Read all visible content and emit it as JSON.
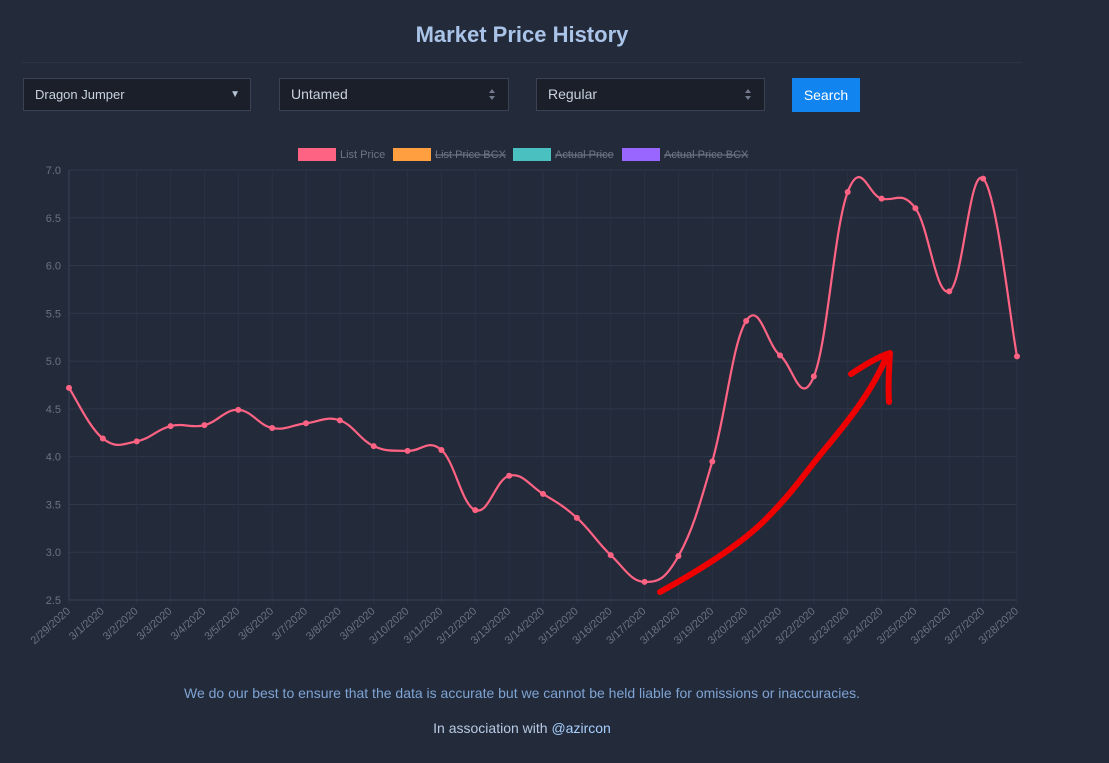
{
  "page": {
    "title": "Market Price History",
    "search_label": "Search"
  },
  "selects": {
    "card": "Dragon Jumper",
    "edition": "Untamed",
    "foil": "Regular"
  },
  "footer": {
    "disclaimer": "We do our best to ensure that the data is accurate but we cannot be held liable for omissions or inaccuracies.",
    "assoc_prefix": "In association with ",
    "assoc_handle": "@azircon"
  },
  "colors": {
    "list_price": "#ff6384",
    "list_price_bcx": "#ff9f40",
    "actual_price": "#4bc0c0",
    "actual_price_bcx": "#9966ff",
    "annotation_arrow": "#ee0000",
    "search_button": "#1184f0"
  },
  "chart_data": {
    "type": "line",
    "title": "",
    "xlabel": "",
    "ylabel": "",
    "ylim": [
      2.5,
      7.0
    ],
    "yticks": [
      "7.0",
      "6.5",
      "6.0",
      "5.5",
      "5.0",
      "4.5",
      "4.0",
      "3.5",
      "3.0",
      "2.5"
    ],
    "grid": true,
    "legend_position": "top",
    "categories": [
      "2/29/2020",
      "3/1/2020",
      "3/2/2020",
      "3/3/2020",
      "3/4/2020",
      "3/5/2020",
      "3/6/2020",
      "3/7/2020",
      "3/8/2020",
      "3/9/2020",
      "3/10/2020",
      "3/11/2020",
      "3/12/2020",
      "3/13/2020",
      "3/14/2020",
      "3/15/2020",
      "3/16/2020",
      "3/17/2020",
      "3/18/2020",
      "3/19/2020",
      "3/20/2020",
      "3/21/2020",
      "3/22/2020",
      "3/23/2020",
      "3/24/2020",
      "3/25/2020",
      "3/26/2020",
      "3/27/2020",
      "3/28/2020"
    ],
    "legend": [
      {
        "label": "List Price",
        "color": "#ff6384",
        "hidden": false
      },
      {
        "label": "List Price BCX",
        "color": "#ff9f40",
        "hidden": true
      },
      {
        "label": "Actual Price",
        "color": "#4bc0c0",
        "hidden": true
      },
      {
        "label": "Actual Price BCX",
        "color": "#9966ff",
        "hidden": true
      }
    ],
    "series": [
      {
        "name": "List Price",
        "color": "#ff6384",
        "values": [
          4.72,
          4.19,
          4.16,
          4.32,
          4.33,
          4.49,
          4.3,
          4.35,
          4.38,
          4.11,
          4.06,
          4.07,
          3.44,
          3.8,
          3.61,
          3.36,
          2.97,
          2.69,
          2.96,
          3.95,
          5.42,
          5.06,
          4.84,
          6.77,
          6.7,
          6.6,
          5.73,
          6.91,
          5.05
        ]
      }
    ],
    "annotations": [
      {
        "type": "arrow",
        "description": "hand-drawn red upward arrow",
        "color": "#ee0000"
      }
    ]
  }
}
